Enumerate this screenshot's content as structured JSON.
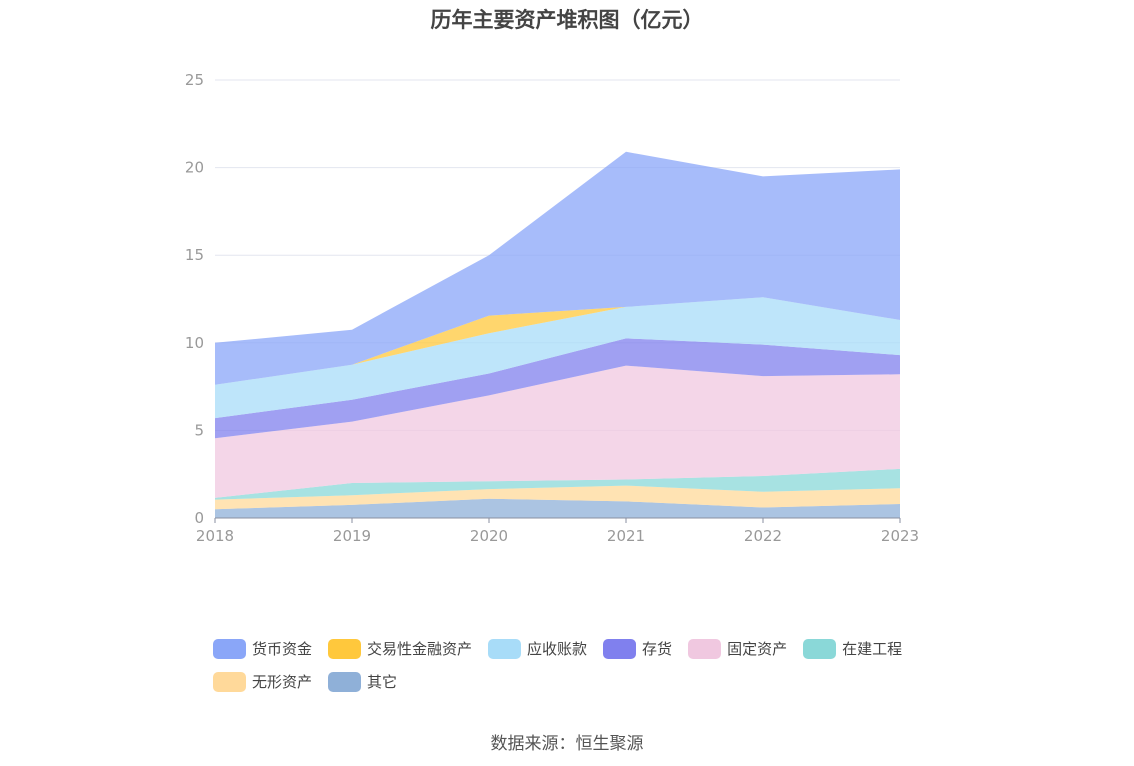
{
  "chart_data": {
    "type": "area",
    "title": "历年主要资产堆积图（亿元）",
    "source": "数据来源：恒生聚源",
    "stacked": true,
    "categories": [
      "2018",
      "2019",
      "2020",
      "2021",
      "2022",
      "2023"
    ],
    "ylim": [
      0,
      25
    ],
    "yticks": [
      "0",
      "5",
      "10",
      "15",
      "20",
      "25"
    ],
    "series": [
      {
        "name": "其它",
        "color": "#8fb0d8",
        "values": [
          0.5,
          0.75,
          1.1,
          0.95,
          0.6,
          0.8
        ]
      },
      {
        "name": "无形资产",
        "color": "#ffd99a",
        "values": [
          0.55,
          0.55,
          0.55,
          0.9,
          0.9,
          0.9
        ]
      },
      {
        "name": "在建工程",
        "color": "#8ad8d8",
        "values": [
          0.1,
          0.7,
          0.45,
          0.35,
          0.9,
          1.1
        ]
      },
      {
        "name": "固定资产",
        "color": "#f0c8e0",
        "values": [
          3.4,
          3.5,
          4.9,
          6.5,
          5.7,
          5.4
        ]
      },
      {
        "name": "存货",
        "color": "#8080ee",
        "values": [
          1.15,
          1.25,
          1.25,
          1.55,
          1.8,
          1.1
        ]
      },
      {
        "name": "应收账款",
        "color": "#a8dcf8",
        "values": [
          1.9,
          2.0,
          2.3,
          1.8,
          2.7,
          2.0
        ]
      },
      {
        "name": "交易性金融资产",
        "color": "#ffc83c",
        "values": [
          0.0,
          0.0,
          1.0,
          0.0,
          0.0,
          0.0
        ]
      },
      {
        "name": "货币资金",
        "color": "#8aa6f8",
        "values": [
          2.4,
          2.0,
          3.45,
          8.85,
          6.9,
          8.6
        ]
      }
    ],
    "legend": [
      {
        "name": "货币资金",
        "color": "#8aa6f8"
      },
      {
        "name": "交易性金融资产",
        "color": "#ffc83c"
      },
      {
        "name": "应收账款",
        "color": "#a8dcf8"
      },
      {
        "name": "存货",
        "color": "#8080ee"
      },
      {
        "name": "固定资产",
        "color": "#f0c8e0"
      },
      {
        "name": "在建工程",
        "color": "#8ad8d8"
      },
      {
        "name": "无形资产",
        "color": "#ffd99a"
      },
      {
        "name": "其它",
        "color": "#8fb0d8"
      }
    ],
    "legend_position": "bottom",
    "grid": true
  }
}
